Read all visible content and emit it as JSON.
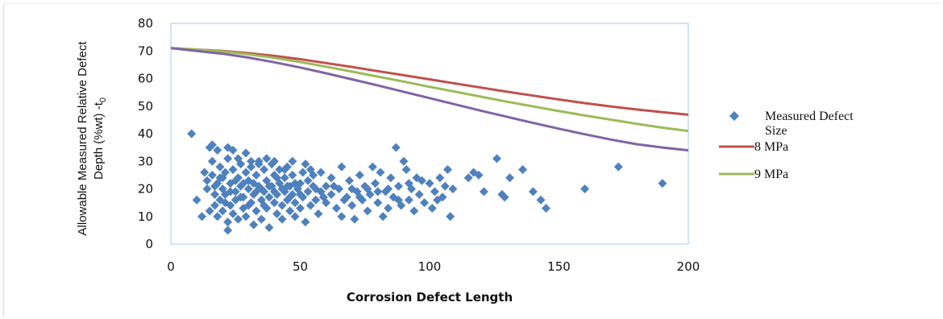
{
  "chart_data": {
    "type": "scatter",
    "xlabel": "Corrosion Defect Length",
    "ylabel_line1": "Allowable Measured Relative Defect",
    "ylabel_line2_main": "Depth (%wt) -t",
    "ylabel_line2_sub": "0",
    "xlim": [
      0,
      200
    ],
    "ylim": [
      0,
      80
    ],
    "x_ticks": [
      0,
      50,
      100,
      150,
      200
    ],
    "y_ticks": [
      0,
      10,
      20,
      30,
      40,
      50,
      60,
      70,
      80
    ],
    "grid": false,
    "legend_position": "right",
    "legend": [
      {
        "label_line1": "Measured Defect",
        "label_line2": "Size",
        "marker": "diamond",
        "color": "#4f81bd"
      },
      {
        "label": "8 MPa",
        "marker": "line",
        "color": "#c0504d"
      },
      {
        "label": "9 MPa",
        "marker": "line",
        "color": "#9bbb59"
      }
    ],
    "lines": [
      {
        "name": "8 MPa",
        "color": "#c0504d",
        "x": [
          0,
          10,
          20,
          30,
          40,
          50,
          60,
          70,
          80,
          90,
          100,
          110,
          120,
          130,
          140,
          150,
          160,
          170,
          180,
          190,
          200
        ],
        "y": [
          71,
          70.5,
          70,
          69.2,
          68.2,
          67,
          65.6,
          64.2,
          62.7,
          61.2,
          59.7,
          58.2,
          56.7,
          55.2,
          53.8,
          52.4,
          51.1,
          49.9,
          48.8,
          47.8,
          46.9
        ]
      },
      {
        "name": "9 MPa",
        "color": "#9bbb59",
        "x": [
          0,
          10,
          20,
          30,
          40,
          50,
          60,
          70,
          80,
          90,
          100,
          110,
          120,
          130,
          140,
          150,
          160,
          170,
          180,
          190,
          200
        ],
        "y": [
          71,
          70.5,
          69.8,
          68.8,
          67.5,
          66,
          64.3,
          62.5,
          60.7,
          58.9,
          57,
          55.2,
          53.4,
          51.6,
          49.9,
          48.2,
          46.6,
          45.1,
          43.6,
          42.2,
          41
        ]
      },
      {
        "name": "",
        "color": "#8064a2",
        "x": [
          0,
          10,
          20,
          30,
          40,
          50,
          60,
          70,
          80,
          90,
          100,
          110,
          120,
          130,
          140,
          150,
          160,
          170,
          180,
          190,
          200
        ],
        "y": [
          71,
          70,
          69,
          67.6,
          65.9,
          64,
          61.9,
          59.7,
          57.5,
          55.2,
          52.9,
          50.6,
          48.3,
          46.1,
          43.9,
          41.8,
          39.8,
          37.9,
          36.2,
          35,
          34
        ]
      }
    ],
    "scatter": {
      "name": "Measured Defect Size",
      "color": "#4f81bd",
      "points": [
        [
          8,
          40
        ],
        [
          10,
          16
        ],
        [
          12,
          10
        ],
        [
          13,
          26
        ],
        [
          14,
          20
        ],
        [
          15,
          12
        ],
        [
          15,
          35
        ],
        [
          16,
          36
        ],
        [
          16,
          30
        ],
        [
          16,
          25
        ],
        [
          17,
          18
        ],
        [
          17,
          14
        ],
        [
          18,
          34
        ],
        [
          18,
          22
        ],
        [
          18,
          10
        ],
        [
          19,
          28
        ],
        [
          19,
          16
        ],
        [
          20,
          12
        ],
        [
          20,
          24
        ],
        [
          20,
          20
        ],
        [
          21,
          26
        ],
        [
          21,
          18
        ],
        [
          22,
          5
        ],
        [
          22,
          8
        ],
        [
          22,
          35
        ],
        [
          22,
          31
        ],
        [
          23,
          14
        ],
        [
          23,
          22
        ],
        [
          24,
          11
        ],
        [
          24,
          27
        ],
        [
          24,
          34
        ],
        [
          25,
          19
        ],
        [
          25,
          16
        ],
        [
          26,
          24
        ],
        [
          26,
          9
        ],
        [
          27,
          29
        ],
        [
          27,
          21
        ],
        [
          28,
          13
        ],
        [
          28,
          17
        ],
        [
          29,
          26
        ],
        [
          29,
          10
        ],
        [
          30,
          20
        ],
        [
          30,
          23
        ],
        [
          31,
          15
        ],
        [
          31,
          28
        ],
        [
          32,
          7
        ],
        [
          32,
          18
        ],
        [
          33,
          25
        ],
        [
          33,
          12
        ],
        [
          34,
          21
        ],
        [
          34,
          30
        ],
        [
          35,
          16
        ],
        [
          35,
          9
        ],
        [
          36,
          27
        ],
        [
          36,
          19
        ],
        [
          37,
          13
        ],
        [
          37,
          23
        ],
        [
          38,
          6
        ],
        [
          38,
          17
        ],
        [
          39,
          29
        ],
        [
          39,
          21
        ],
        [
          40,
          15
        ],
        [
          40,
          25
        ],
        [
          41,
          11
        ],
        [
          41,
          18
        ],
        [
          42,
          27
        ],
        [
          42,
          22
        ],
        [
          43,
          14
        ],
        [
          43,
          9
        ],
        [
          44,
          24
        ],
        [
          44,
          19
        ],
        [
          45,
          16
        ],
        [
          45,
          28
        ],
        [
          46,
          21
        ],
        [
          46,
          12
        ],
        [
          47,
          18
        ],
        [
          47,
          25
        ],
        [
          48,
          10
        ],
        [
          48,
          15
        ],
        [
          49,
          20
        ],
        [
          50,
          22
        ],
        [
          50,
          13
        ],
        [
          51,
          17
        ],
        [
          52,
          29
        ],
        [
          52,
          8
        ],
        [
          53,
          19
        ],
        [
          54,
          14
        ],
        [
          55,
          21
        ],
        [
          55,
          25
        ],
        [
          56,
          16
        ],
        [
          57,
          11
        ],
        [
          58,
          26
        ],
        [
          58,
          19
        ],
        [
          60,
          15
        ],
        [
          60,
          21
        ],
        [
          62,
          18
        ],
        [
          62,
          24
        ],
        [
          64,
          13
        ],
        [
          65,
          20
        ],
        [
          66,
          28
        ],
        [
          66,
          10
        ],
        [
          68,
          17
        ],
        [
          69,
          23
        ],
        [
          70,
          14
        ],
        [
          71,
          9
        ],
        [
          72,
          19
        ],
        [
          73,
          25
        ],
        [
          74,
          16
        ],
        [
          75,
          21
        ],
        [
          76,
          12
        ],
        [
          77,
          18
        ],
        [
          78,
          28
        ],
        [
          79,
          22
        ],
        [
          80,
          15
        ],
        [
          81,
          26
        ],
        [
          82,
          10
        ],
        [
          83,
          19
        ],
        [
          84,
          13
        ],
        [
          85,
          24
        ],
        [
          86,
          17
        ],
        [
          87,
          35
        ],
        [
          88,
          21
        ],
        [
          89,
          14
        ],
        [
          90,
          30
        ],
        [
          91,
          27
        ],
        [
          92,
          16
        ],
        [
          93,
          20
        ],
        [
          94,
          12
        ],
        [
          95,
          24
        ],
        [
          96,
          18
        ],
        [
          98,
          15
        ],
        [
          100,
          22
        ],
        [
          101,
          13
        ],
        [
          102,
          19
        ],
        [
          104,
          24
        ],
        [
          105,
          17
        ],
        [
          106,
          21
        ],
        [
          107,
          27
        ],
        [
          108,
          10
        ],
        [
          109,
          20
        ],
        [
          115,
          24
        ],
        [
          117,
          26
        ],
        [
          119,
          25
        ],
        [
          121,
          19
        ],
        [
          126,
          31
        ],
        [
          128,
          18
        ],
        [
          129,
          17
        ],
        [
          131,
          24
        ],
        [
          136,
          27
        ],
        [
          140,
          19
        ],
        [
          143,
          16
        ],
        [
          145,
          13
        ],
        [
          160,
          20
        ],
        [
          173,
          28
        ],
        [
          190,
          22
        ],
        [
          14,
          23
        ],
        [
          17,
          21
        ],
        [
          19,
          24
        ],
        [
          21,
          15
        ],
        [
          23,
          19
        ],
        [
          25,
          23
        ],
        [
          27,
          17
        ],
        [
          28,
          22
        ],
        [
          30,
          14
        ],
        [
          32,
          22
        ],
        [
          33,
          19
        ],
        [
          35,
          20
        ],
        [
          36,
          14
        ],
        [
          38,
          21
        ],
        [
          40,
          19
        ],
        [
          41,
          24
        ],
        [
          43,
          20
        ],
        [
          45,
          21
        ],
        [
          46,
          17
        ],
        [
          48,
          22
        ],
        [
          50,
          18
        ],
        [
          53,
          23
        ],
        [
          56,
          20
        ],
        [
          59,
          17
        ],
        [
          63,
          21
        ],
        [
          67,
          16
        ],
        [
          70,
          20
        ],
        [
          73,
          17
        ],
        [
          76,
          20
        ],
        [
          80,
          19
        ],
        [
          84,
          20
        ],
        [
          88,
          16
        ],
        [
          92,
          22
        ],
        [
          97,
          23
        ],
        [
          103,
          16
        ],
        [
          26,
          31
        ],
        [
          29,
          33
        ],
        [
          31,
          30
        ],
        [
          34,
          29
        ],
        [
          37,
          31
        ],
        [
          40,
          30
        ],
        [
          44,
          27
        ],
        [
          47,
          30
        ],
        [
          51,
          26
        ],
        [
          54,
          27
        ]
      ]
    }
  }
}
